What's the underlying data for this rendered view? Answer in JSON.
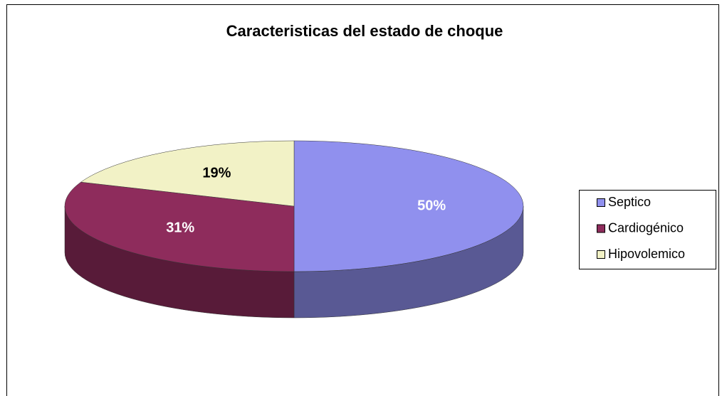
{
  "chart_data": {
    "type": "pie",
    "title": "Caracteristicas del estado de choque",
    "categories": [
      "Septico",
      "Cardiogénico",
      "Hipovolemico"
    ],
    "values": [
      50,
      31,
      19
    ],
    "value_labels": [
      "50%",
      "31%",
      "19%"
    ],
    "colors": [
      "#9090ee",
      "#8e2c5c",
      "#f2f2c6"
    ],
    "legend": "right"
  }
}
